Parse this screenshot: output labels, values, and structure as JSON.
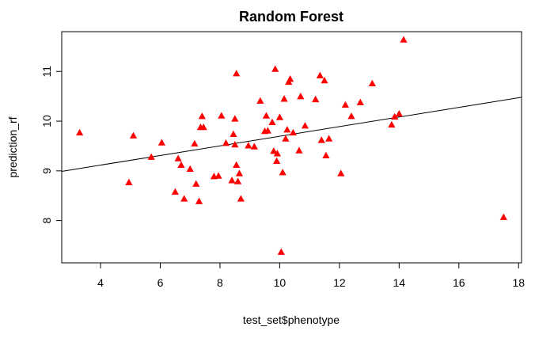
{
  "chart_data": {
    "type": "scatter",
    "title": "Random Forest",
    "xlabel": "test_set$phenotype",
    "ylabel": "prediction_rf",
    "xlim": [
      2.7,
      18.1
    ],
    "ylim": [
      7.15,
      11.8
    ],
    "xticks": [
      4,
      6,
      8,
      10,
      12,
      14,
      16,
      18
    ],
    "yticks": [
      8,
      9,
      10,
      11
    ],
    "grid": false,
    "marker": "triangle",
    "marker_color": "#ff0000",
    "line_color": "#000000",
    "fit_line": {
      "x": [
        2.7,
        18.1
      ],
      "y": [
        8.99,
        10.48
      ]
    },
    "points": [
      [
        3.3,
        9.77
      ],
      [
        4.95,
        8.77
      ],
      [
        5.1,
        9.71
      ],
      [
        5.7,
        9.28
      ],
      [
        6.05,
        9.57
      ],
      [
        6.5,
        8.58
      ],
      [
        6.6,
        9.25
      ],
      [
        6.7,
        9.12
      ],
      [
        6.8,
        8.44
      ],
      [
        7.0,
        9.04
      ],
      [
        7.15,
        9.55
      ],
      [
        7.2,
        8.74
      ],
      [
        7.3,
        8.39
      ],
      [
        7.35,
        9.88
      ],
      [
        7.4,
        10.1
      ],
      [
        7.45,
        9.88
      ],
      [
        7.8,
        8.89
      ],
      [
        7.95,
        8.9
      ],
      [
        8.05,
        10.11
      ],
      [
        8.2,
        9.56
      ],
      [
        8.4,
        8.81
      ],
      [
        8.45,
        9.74
      ],
      [
        8.5,
        9.53
      ],
      [
        8.5,
        10.05
      ],
      [
        8.55,
        9.12
      ],
      [
        8.55,
        10.96
      ],
      [
        8.6,
        8.79
      ],
      [
        8.65,
        8.95
      ],
      [
        8.7,
        8.44
      ],
      [
        8.95,
        9.51
      ],
      [
        9.15,
        9.49
      ],
      [
        9.35,
        10.41
      ],
      [
        9.5,
        9.8
      ],
      [
        9.55,
        10.11
      ],
      [
        9.6,
        9.81
      ],
      [
        9.75,
        9.98
      ],
      [
        9.8,
        9.4
      ],
      [
        9.85,
        11.05
      ],
      [
        9.9,
        9.2
      ],
      [
        9.92,
        9.35
      ],
      [
        10.0,
        10.08
      ],
      [
        10.05,
        7.37
      ],
      [
        10.1,
        8.97
      ],
      [
        10.15,
        10.45
      ],
      [
        10.2,
        9.65
      ],
      [
        10.25,
        9.83
      ],
      [
        10.3,
        10.79
      ],
      [
        10.35,
        10.85
      ],
      [
        10.45,
        9.77
      ],
      [
        10.65,
        9.41
      ],
      [
        10.7,
        10.5
      ],
      [
        10.85,
        9.91
      ],
      [
        11.2,
        10.44
      ],
      [
        11.35,
        10.92
      ],
      [
        11.4,
        9.62
      ],
      [
        11.5,
        10.82
      ],
      [
        11.55,
        9.31
      ],
      [
        11.65,
        9.65
      ],
      [
        12.05,
        8.95
      ],
      [
        12.2,
        10.33
      ],
      [
        12.4,
        10.1
      ],
      [
        12.7,
        10.38
      ],
      [
        13.1,
        10.76
      ],
      [
        13.75,
        9.93
      ],
      [
        13.85,
        10.09
      ],
      [
        14.0,
        10.15
      ],
      [
        14.15,
        11.64
      ],
      [
        17.5,
        8.07
      ]
    ]
  }
}
